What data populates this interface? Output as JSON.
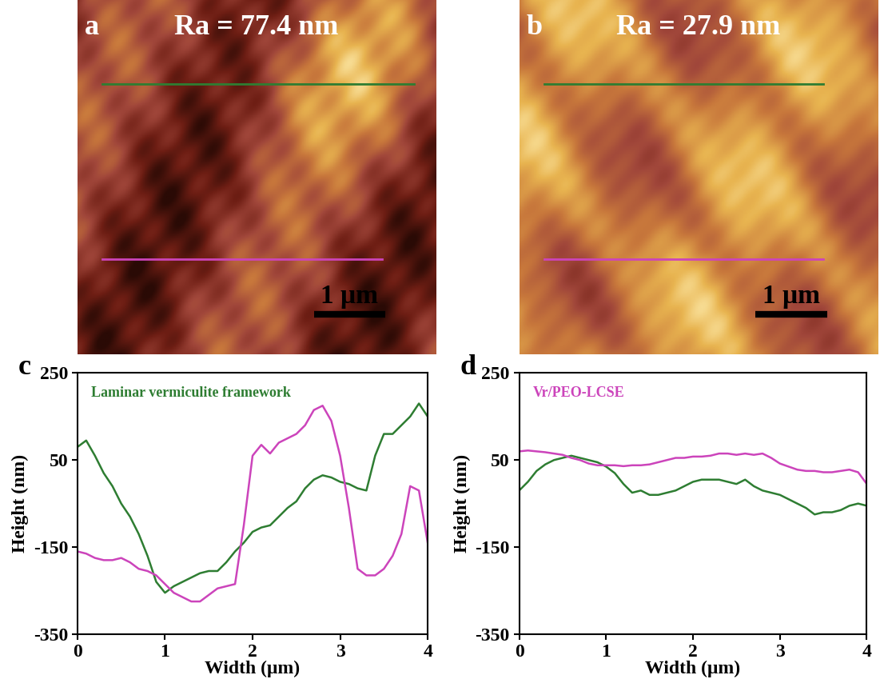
{
  "chart_data": [
    {
      "type": "image",
      "label": "a",
      "annotation": "Ra = 77.4 nm",
      "scale_bar": "1 μm",
      "colors": [
        "#2e7d32",
        "#cc44bb"
      ]
    },
    {
      "type": "image",
      "label": "b",
      "annotation": "Ra = 27.9 nm",
      "scale_bar": "1 μm",
      "colors": [
        "#2e7d32",
        "#cc44bb"
      ]
    },
    {
      "type": "line",
      "label": "c",
      "annotation": "Laminar vermiculite framework",
      "color": "#2e7d32",
      "xlabel": "Width (μm)",
      "ylabel": "Height (nm)",
      "xlim": [
        0,
        4
      ],
      "xticks": [
        0,
        1,
        2,
        3,
        4
      ],
      "ylim": [
        -350,
        250
      ],
      "yticks": [
        -350,
        -150,
        50,
        250
      ],
      "x": [
        0.0,
        0.1,
        0.2,
        0.3,
        0.4,
        0.5,
        0.6,
        0.7,
        0.8,
        0.9,
        1.0,
        1.1,
        1.2,
        1.3,
        1.4,
        1.5,
        1.6,
        1.7,
        1.8,
        1.9,
        2.0,
        2.1,
        2.2,
        2.3,
        2.4,
        2.5,
        2.6,
        2.7,
        2.8,
        2.9,
        3.0,
        3.1,
        3.2,
        3.3,
        3.4,
        3.5,
        3.6,
        3.7,
        3.8,
        3.9,
        4.0
      ],
      "series": [
        {
          "color": "#2e7d32",
          "values": [
            80,
            95,
            60,
            20,
            -10,
            -50,
            -80,
            -120,
            -170,
            -230,
            -255,
            -240,
            -230,
            -220,
            -210,
            -205,
            -205,
            -185,
            -160,
            -140,
            -115,
            -105,
            -100,
            -80,
            -60,
            -45,
            -15,
            5,
            15,
            10,
            0,
            -5,
            -15,
            -20,
            60,
            110,
            110,
            130,
            150,
            180,
            150
          ]
        },
        {
          "color": "#cc44bb",
          "values": [
            -160,
            -165,
            -175,
            -180,
            -180,
            -175,
            -185,
            -200,
            -205,
            -215,
            -235,
            -255,
            -265,
            -275,
            -275,
            -260,
            -245,
            -240,
            -235,
            -100,
            60,
            85,
            65,
            90,
            100,
            110,
            130,
            165,
            175,
            140,
            60,
            -60,
            -200,
            -215,
            -215,
            -200,
            -170,
            -120,
            -10,
            -20,
            -140
          ]
        }
      ]
    },
    {
      "type": "line",
      "label": "d",
      "annotation": "Vr/PEO-LCSE",
      "color": "#cc44bb",
      "xlabel": "Width (μm)",
      "ylabel": "Height (nm)",
      "xlim": [
        0,
        4
      ],
      "xticks": [
        0,
        1,
        2,
        3,
        4
      ],
      "ylim": [
        -350,
        250
      ],
      "yticks": [
        -350,
        -150,
        50,
        250
      ],
      "x": [
        0.0,
        0.1,
        0.2,
        0.3,
        0.4,
        0.5,
        0.6,
        0.7,
        0.8,
        0.9,
        1.0,
        1.1,
        1.2,
        1.3,
        1.4,
        1.5,
        1.6,
        1.7,
        1.8,
        1.9,
        2.0,
        2.1,
        2.2,
        2.3,
        2.4,
        2.5,
        2.6,
        2.7,
        2.8,
        2.9,
        3.0,
        3.1,
        3.2,
        3.3,
        3.4,
        3.5,
        3.6,
        3.7,
        3.8,
        3.9,
        4.0
      ],
      "series": [
        {
          "color": "#2e7d32",
          "values": [
            -20,
            0,
            25,
            40,
            50,
            55,
            60,
            55,
            50,
            45,
            35,
            20,
            -5,
            -25,
            -20,
            -30,
            -30,
            -25,
            -20,
            -10,
            0,
            5,
            5,
            5,
            0,
            -5,
            5,
            -10,
            -20,
            -25,
            -30,
            -40,
            -50,
            -60,
            -75,
            -70,
            -70,
            -65,
            -55,
            -50,
            -55
          ]
        },
        {
          "color": "#cc44bb",
          "values": [
            70,
            72,
            70,
            68,
            65,
            62,
            55,
            50,
            42,
            38,
            38,
            38,
            36,
            38,
            38,
            40,
            45,
            50,
            55,
            55,
            58,
            58,
            60,
            65,
            65,
            62,
            65,
            62,
            65,
            55,
            42,
            35,
            28,
            25,
            25,
            22,
            22,
            25,
            28,
            22,
            -5
          ]
        }
      ]
    }
  ]
}
